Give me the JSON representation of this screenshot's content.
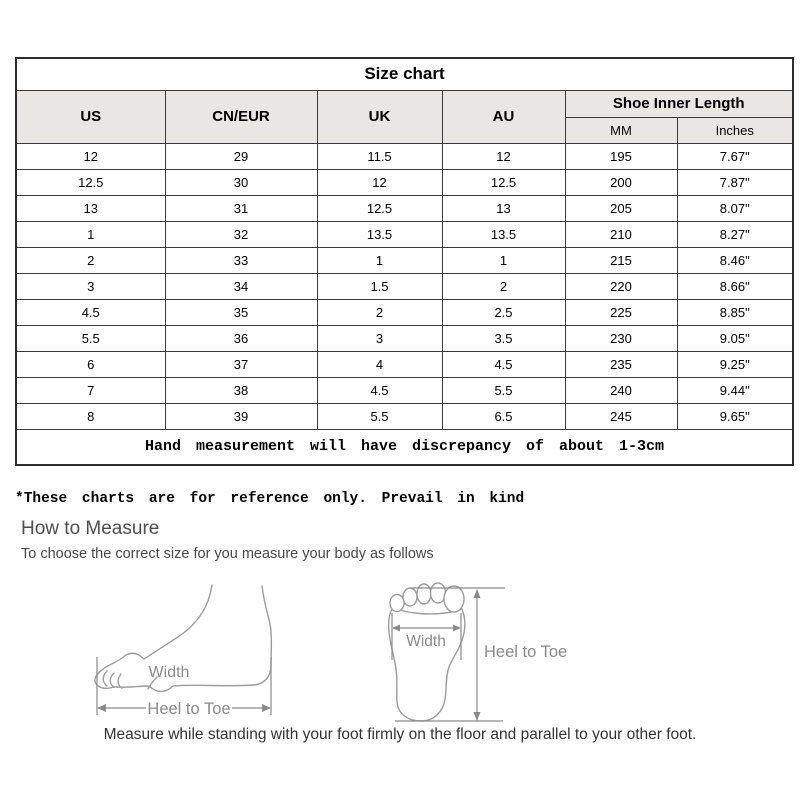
{
  "size_chart": {
    "title": "Size chart",
    "columns": [
      "US",
      "CN/EUR",
      "UK",
      "AU"
    ],
    "inner_length_header": "Shoe Inner Length",
    "inner_length_subcolumns": [
      "MM",
      "Inches"
    ],
    "rows": [
      [
        "12",
        "29",
        "11.5",
        "12",
        "195",
        "7.67\""
      ],
      [
        "12.5",
        "30",
        "12",
        "12.5",
        "200",
        "7.87\""
      ],
      [
        "13",
        "31",
        "12.5",
        "13",
        "205",
        "8.07\""
      ],
      [
        "1",
        "32",
        "13.5",
        "13.5",
        "210",
        "8.27\""
      ],
      [
        "2",
        "33",
        "1",
        "1",
        "215",
        "8.46\""
      ],
      [
        "3",
        "34",
        "1.5",
        "2",
        "220",
        "8.66\""
      ],
      [
        "4.5",
        "35",
        "2",
        "2.5",
        "225",
        "8.85\""
      ],
      [
        "5.5",
        "36",
        "3",
        "3.5",
        "230",
        "9.05\""
      ],
      [
        "6",
        "37",
        "4",
        "4.5",
        "235",
        "9.25\""
      ],
      [
        "7",
        "38",
        "4.5",
        "5.5",
        "240",
        "9.44\""
      ],
      [
        "8",
        "39",
        "5.5",
        "6.5",
        "245",
        "9.65\""
      ]
    ],
    "footnote": "Hand measurement will have discrepancy of about 1-3cm"
  },
  "reference_note": "*These charts are for reference only. Prevail in kind",
  "how_to_measure": {
    "heading": "How to Measure",
    "subheading": "To choose the correct size for you measure your body as follows",
    "side_view": {
      "width_label": "Width",
      "heel_to_toe_label": "Heel to Toe"
    },
    "bottom_view": {
      "width_label": "Width",
      "heel_to_toe_label": "Heel to Toe"
    },
    "caption": "Measure while standing with your foot firmly on the floor and parallel to your other foot."
  },
  "colors": {
    "header_background": "#e8e7e4",
    "table_border": "#2d2d2d",
    "diagram_stroke": "#9c9c9c",
    "diagram_label": "#8a8a8a"
  }
}
